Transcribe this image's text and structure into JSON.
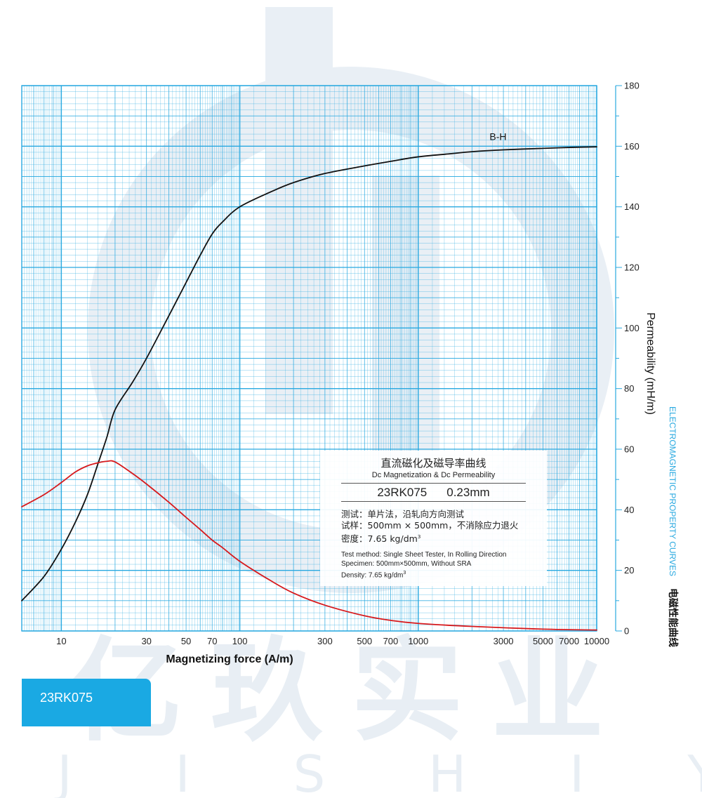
{
  "brand": {
    "watermark_cn": "亿玖实业",
    "watermark_en": "YIJISHIYE"
  },
  "side": {
    "title_en": "ELECTROMAGNETIC PROPERTY CURVES",
    "title_cn": "电磁性能曲线"
  },
  "info": {
    "title_cn": "直流磁化及磁导率曲线",
    "title_en": "Dc Magnetization & Dc Permeability",
    "grade": "23RK075",
    "thickness": "0.23mm",
    "method_cn_label": "测试：",
    "method_cn": "单片法，沿轧向方向测试",
    "specimen_cn_label": "试样：",
    "specimen_cn": "500mm × 500mm，不消除应力退火",
    "density_cn_label": "密度：",
    "density_cn": "7.65 kg/dm",
    "density_cn_sup": "3",
    "method_en": "Test method: Single Sheet Tester, In Rolling Direction",
    "specimen_en": "Specimen: 500mm×500mm, Without SRA",
    "density_en": "Density: 7.65 kg/dm",
    "density_en_sup": "3"
  },
  "grade_tab": "23RK075",
  "colors": {
    "grid": "#29a9e0",
    "bh_curve": "#111111",
    "permeability_curve": "#d7191c",
    "accent": "#1aa9e3"
  },
  "chart_data": {
    "type": "line",
    "xlabel": "Magnetizing force (A/m)",
    "ylabel": "Permeability (mH/m)",
    "x_scale": "log",
    "xlim": [
      6,
      10000
    ],
    "ylim": [
      0,
      180
    ],
    "x_ticks": [
      {
        "value": 10,
        "label": "10"
      },
      {
        "value": 30,
        "label": "30"
      },
      {
        "value": 50,
        "label": "50"
      },
      {
        "value": 70,
        "label": "70"
      },
      {
        "value": 100,
        "label": "100"
      },
      {
        "value": 300,
        "label": "300"
      },
      {
        "value": 500,
        "label": "500"
      },
      {
        "value": 700,
        "label": "700"
      },
      {
        "value": 1000,
        "label": "1000"
      },
      {
        "value": 3000,
        "label": "3000"
      },
      {
        "value": 5000,
        "label": "5000"
      },
      {
        "value": 7000,
        "label": "7000"
      },
      {
        "value": 10000,
        "label": "10000"
      }
    ],
    "y_ticks": [
      {
        "value": 0,
        "label": "0"
      },
      {
        "value": 20,
        "label": "20"
      },
      {
        "value": 40,
        "label": "40"
      },
      {
        "value": 60,
        "label": "60"
      },
      {
        "value": 80,
        "label": "80"
      },
      {
        "value": 100,
        "label": "100"
      },
      {
        "value": 120,
        "label": "120"
      },
      {
        "value": 140,
        "label": "140"
      },
      {
        "value": 160,
        "label": "160"
      },
      {
        "value": 180,
        "label": "180"
      }
    ],
    "grid": true,
    "series": [
      {
        "name": "B-H",
        "color": "#111111",
        "x": [
          6,
          8,
          10,
          12,
          14,
          16,
          18,
          20,
          25,
          30,
          40,
          50,
          60,
          70,
          80,
          100,
          150,
          200,
          300,
          500,
          700,
          1000,
          1500,
          2000,
          3000,
          5000,
          7000,
          10000
        ],
        "y": [
          10,
          18,
          27,
          36,
          45,
          55,
          64,
          73,
          82,
          90,
          104,
          115,
          124,
          131,
          135,
          140,
          145,
          148,
          151,
          153.5,
          155,
          156.5,
          157.5,
          158.2,
          158.8,
          159.3,
          159.6,
          159.8
        ]
      },
      {
        "name": "",
        "color": "#d7191c",
        "x": [
          6,
          8,
          10,
          12,
          14,
          16,
          18,
          20,
          25,
          30,
          40,
          50,
          60,
          70,
          80,
          100,
          150,
          200,
          300,
          500,
          700,
          1000,
          2000,
          5000,
          10000
        ],
        "y": [
          41,
          45,
          49,
          52.5,
          54.5,
          55.5,
          56,
          55.8,
          52,
          48.5,
          42.5,
          37.5,
          33.5,
          30,
          27.5,
          23,
          16.5,
          12.5,
          8.5,
          5,
          3.5,
          2.5,
          1.5,
          0.6,
          0.3
        ]
      }
    ],
    "curve_labels": [
      {
        "text": "B-H",
        "x": 2800,
        "y": 162
      }
    ]
  }
}
